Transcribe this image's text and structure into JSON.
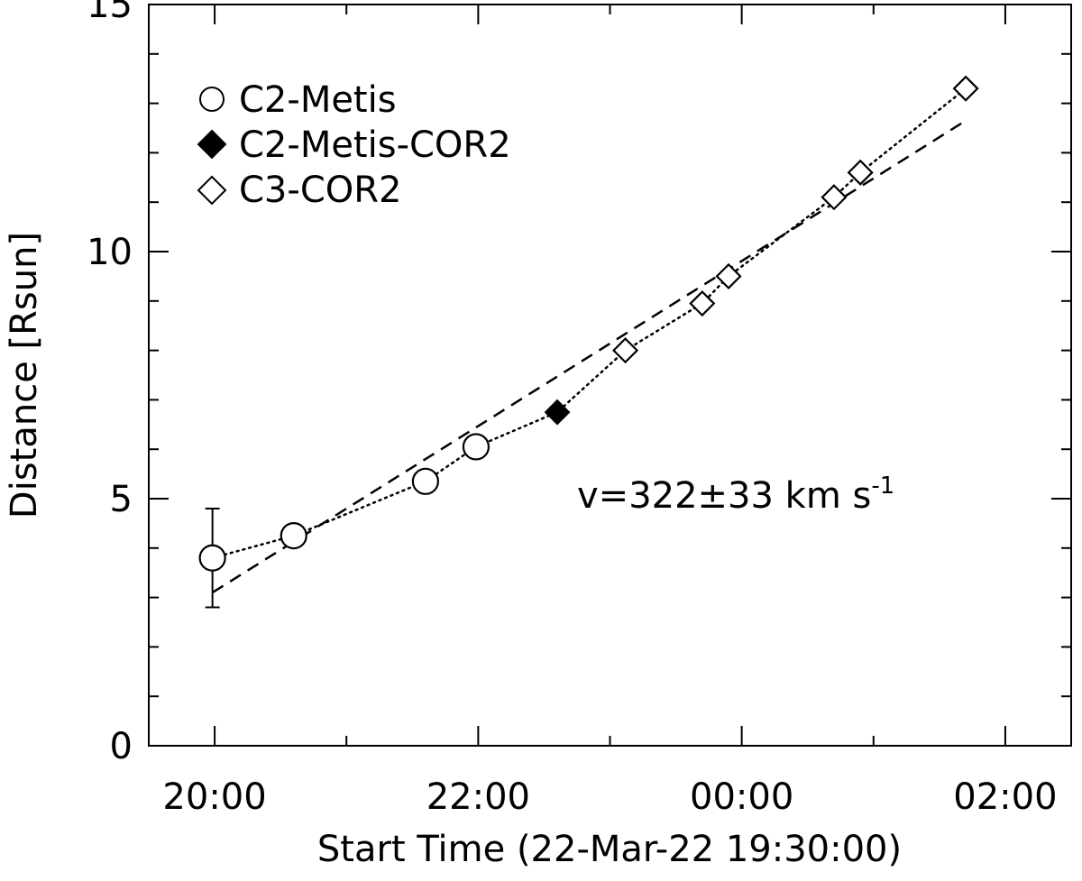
{
  "chart_data": {
    "type": "scatter",
    "xlabel": "Start Time (22-Mar-22 19:30:00)",
    "ylabel": "Distance [Rsun]",
    "x_unit": "time",
    "xlim": [
      "2022-03-22 19:30",
      "2022-03-23 02:30"
    ],
    "ylim": [
      0,
      15
    ],
    "x_ticks": [
      "20:00",
      "22:00",
      "00:00",
      "02:00"
    ],
    "y_ticks": [
      "0",
      "5",
      "10",
      "15"
    ],
    "grid": false,
    "legend_position": "top-left",
    "series": [
      {
        "name": "C2-Metis",
        "marker": "open-circle",
        "points": [
          {
            "x": "2022-03-22 19:59",
            "y": 3.8,
            "yerr": 1.0
          },
          {
            "x": "2022-03-22 20:36",
            "y": 4.25
          },
          {
            "x": "2022-03-22 21:36",
            "y": 5.35
          },
          {
            "x": "2022-03-22 21:59",
            "y": 6.05
          }
        ]
      },
      {
        "name": "C2-Metis-COR2",
        "marker": "filled-diamond",
        "points": [
          {
            "x": "2022-03-22 22:36",
            "y": 6.75
          }
        ]
      },
      {
        "name": "C3-COR2",
        "marker": "open-diamond",
        "points": [
          {
            "x": "2022-03-22 23:07",
            "y": 8.0
          },
          {
            "x": "2022-03-22 23:42",
            "y": 8.95
          },
          {
            "x": "2022-03-22 23:54",
            "y": 9.5
          },
          {
            "x": "2022-03-23 00:42",
            "y": 11.1
          },
          {
            "x": "2022-03-23 00:54",
            "y": 11.6
          },
          {
            "x": "2022-03-23 01:42",
            "y": 13.3
          }
        ]
      }
    ],
    "fits": [
      {
        "style": "dashed",
        "kind": "linear",
        "x": [
          "2022-03-22 19:59",
          "2022-03-23 01:42"
        ],
        "y": [
          3.1,
          12.65
        ]
      },
      {
        "style": "dotted",
        "kind": "polynomial",
        "through_points": true
      }
    ],
    "annotation": "v=322±33 km s",
    "annotation_superscript": "-1"
  }
}
